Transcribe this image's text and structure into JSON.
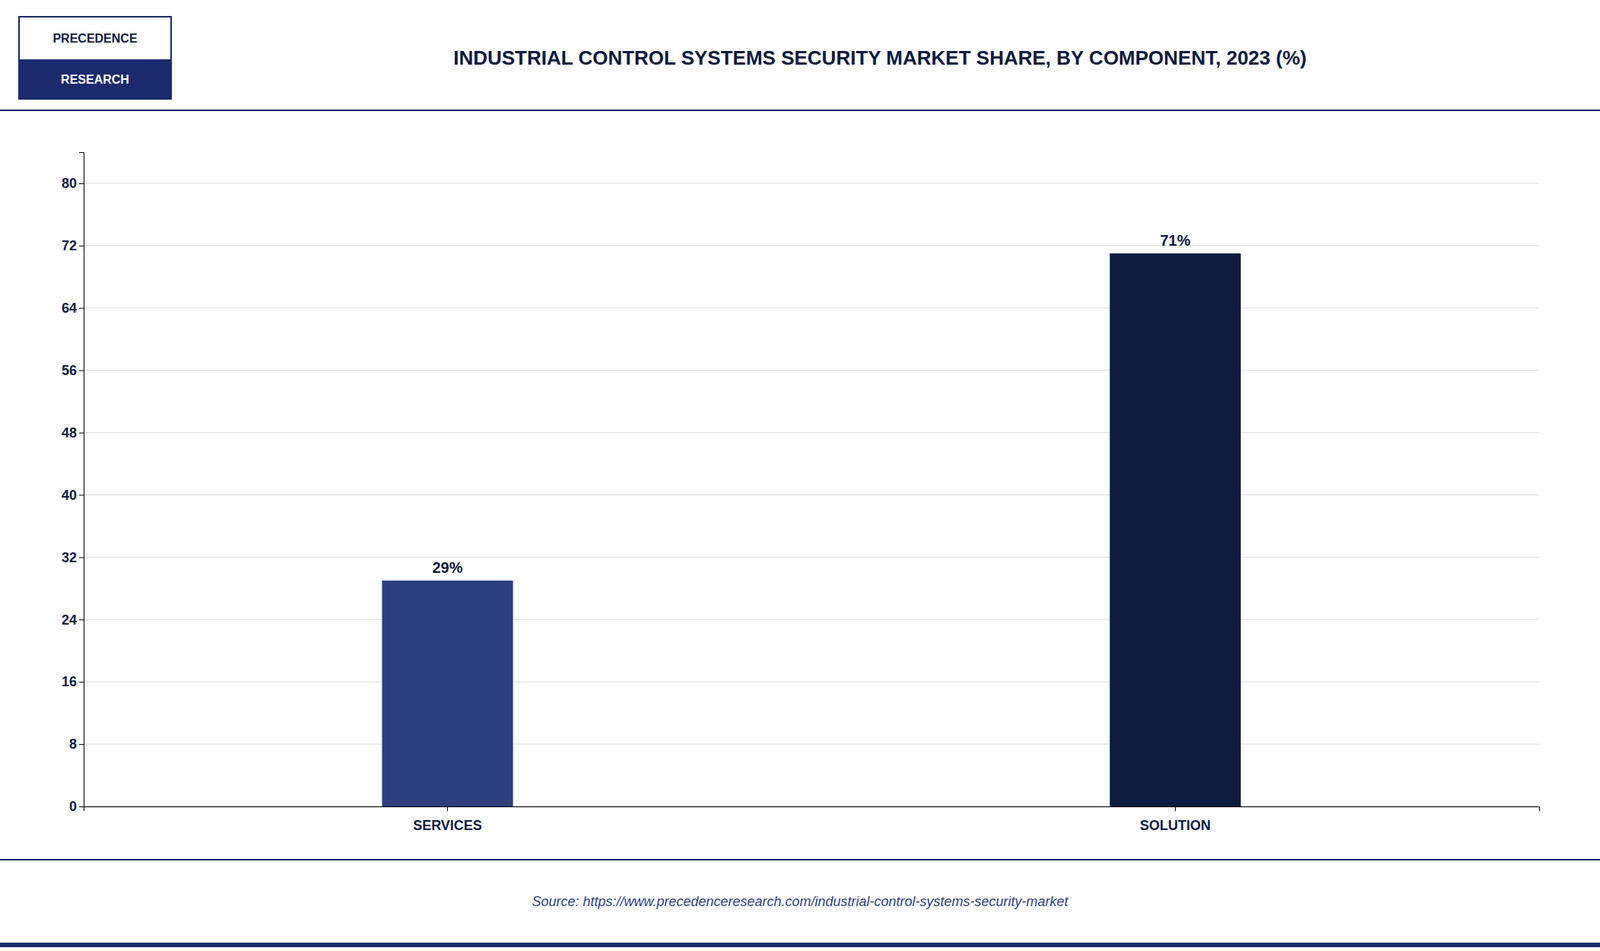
{
  "chart_data": {
    "type": "bar",
    "title": "INDUSTRIAL CONTROL SYSTEMS SECURITY MARKET SHARE, BY COMPONENT, 2023 (%)",
    "categories": [
      "SERVICES",
      "SOLUTION"
    ],
    "values": [
      29,
      71
    ],
    "value_labels": [
      "29%",
      "71%"
    ],
    "data_labels": true,
    "colors": [
      "#2e3f7f",
      "#0d1b3e"
    ],
    "ylim": [
      0,
      84
    ],
    "yticks": [
      0,
      8,
      16,
      24,
      32,
      40,
      48,
      56,
      64,
      72,
      80
    ],
    "grid": true,
    "annotations": [
      "PRECEDENCE",
      "RESEARCH",
      "Source: https://www.precedenceresearch.com/industrial-control-systems-security-market"
    ]
  }
}
